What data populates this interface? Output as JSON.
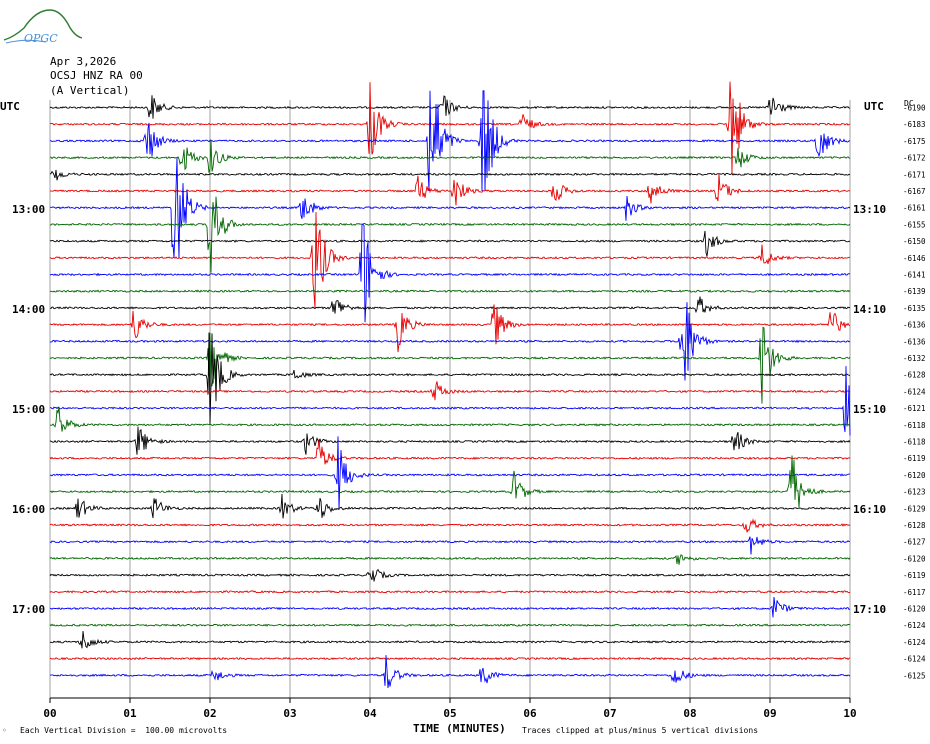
{
  "logo": {
    "text": "OPGC"
  },
  "header": {
    "date": "Apr 3,2026",
    "station": "OCSJ HNZ RA 00",
    "component": "(A Vertical)"
  },
  "left_axis": {
    "unit": "UTC",
    "hour_labels": [
      "13:00",
      "14:00",
      "15:00",
      "16:00",
      "17:00"
    ]
  },
  "right_axis": {
    "unit": "UTC",
    "hour_labels": [
      "13:10",
      "14:10",
      "15:10",
      "16:10",
      "17:10"
    ],
    "dc_label": "DC"
  },
  "colors": {
    "cycle": [
      "#000000",
      "#e60000",
      "#0000ff",
      "#006600"
    ],
    "grid": "#666666"
  },
  "chart_data": {
    "type": "line",
    "title": "",
    "xlabel": "TIME (MINUTES)",
    "x_ticks": [
      "00",
      "01",
      "02",
      "03",
      "04",
      "05",
      "06",
      "07",
      "08",
      "09",
      "10"
    ],
    "xlim": [
      0,
      10
    ],
    "trace_offsets": [
      -6190,
      -6183,
      -6175,
      -6172,
      -6171,
      -6167,
      -6161,
      -6155,
      -6150,
      -6146,
      -6141,
      -6139,
      -6135,
      -6136,
      -6136,
      -6132,
      -6128,
      -6124,
      -6121,
      -6118,
      -6118,
      -6119,
      -6120,
      -6123,
      -6129,
      -6128,
      -6127,
      -6120,
      -6119,
      -6117,
      -6120,
      -6124,
      -6124,
      -6124,
      -6125
    ],
    "events": [
      {
        "trace": 0,
        "minute": 1.25,
        "amp": 1.3
      },
      {
        "trace": 0,
        "minute": 4.9,
        "amp": 1.2
      },
      {
        "trace": 0,
        "minute": 9.0,
        "amp": 1.5
      },
      {
        "trace": 1,
        "minute": 4.0,
        "amp": 3.5
      },
      {
        "trace": 1,
        "minute": 5.9,
        "amp": 1.0
      },
      {
        "trace": 1,
        "minute": 8.5,
        "amp": 6
      },
      {
        "trace": 2,
        "minute": 1.2,
        "amp": 2.5
      },
      {
        "trace": 2,
        "minute": 4.75,
        "amp": 8
      },
      {
        "trace": 2,
        "minute": 5.4,
        "amp": 8
      },
      {
        "trace": 2,
        "minute": 9.6,
        "amp": 2
      },
      {
        "trace": 3,
        "minute": 1.65,
        "amp": 1.5
      },
      {
        "trace": 3,
        "minute": 2.0,
        "amp": 1.5
      },
      {
        "trace": 3,
        "minute": 8.6,
        "amp": 1.0
      },
      {
        "trace": 4,
        "minute": 0.05,
        "amp": 0.6
      },
      {
        "trace": 5,
        "minute": 4.6,
        "amp": 1.2
      },
      {
        "trace": 5,
        "minute": 5.05,
        "amp": 1.5
      },
      {
        "trace": 5,
        "minute": 6.3,
        "amp": 1.2
      },
      {
        "trace": 5,
        "minute": 7.5,
        "amp": 1.2
      },
      {
        "trace": 5,
        "minute": 8.35,
        "amp": 1.5
      },
      {
        "trace": 6,
        "minute": 1.55,
        "amp": 8
      },
      {
        "trace": 6,
        "minute": 3.15,
        "amp": 1.5
      },
      {
        "trace": 6,
        "minute": 7.2,
        "amp": 1.0
      },
      {
        "trace": 7,
        "minute": 2.0,
        "amp": 5
      },
      {
        "trace": 8,
        "minute": 8.2,
        "amp": 1.2
      },
      {
        "trace": 9,
        "minute": 3.3,
        "amp": 6
      },
      {
        "trace": 9,
        "minute": 8.9,
        "amp": 1.0
      },
      {
        "trace": 10,
        "minute": 3.9,
        "amp": 6
      },
      {
        "trace": 12,
        "minute": 3.55,
        "amp": 1.2
      },
      {
        "trace": 12,
        "minute": 8.1,
        "amp": 1.0
      },
      {
        "trace": 13,
        "minute": 1.05,
        "amp": 1.5
      },
      {
        "trace": 13,
        "minute": 4.35,
        "amp": 2
      },
      {
        "trace": 13,
        "minute": 5.55,
        "amp": 2
      },
      {
        "trace": 13,
        "minute": 9.75,
        "amp": 1.5
      },
      {
        "trace": 14,
        "minute": 7.9,
        "amp": 6
      },
      {
        "trace": 15,
        "minute": 2.0,
        "amp": 3
      },
      {
        "trace": 15,
        "minute": 8.9,
        "amp": 4
      },
      {
        "trace": 16,
        "minute": 2.0,
        "amp": 5
      },
      {
        "trace": 16,
        "minute": 3.05,
        "amp": 0.5
      },
      {
        "trace": 17,
        "minute": 4.8,
        "amp": 1.0
      },
      {
        "trace": 18,
        "minute": 9.95,
        "amp": 4
      },
      {
        "trace": 19,
        "minute": 0.1,
        "amp": 1.5
      },
      {
        "trace": 20,
        "minute": 1.1,
        "amp": 1.5
      },
      {
        "trace": 20,
        "minute": 3.2,
        "amp": 1.0
      },
      {
        "trace": 20,
        "minute": 8.55,
        "amp": 1.2
      },
      {
        "trace": 21,
        "minute": 3.35,
        "amp": 1.5
      },
      {
        "trace": 22,
        "minute": 3.6,
        "amp": 3
      },
      {
        "trace": 23,
        "minute": 5.8,
        "amp": 1.5
      },
      {
        "trace": 23,
        "minute": 9.25,
        "amp": 4
      },
      {
        "trace": 24,
        "minute": 0.35,
        "amp": 1.0
      },
      {
        "trace": 24,
        "minute": 1.3,
        "amp": 1.0
      },
      {
        "trace": 24,
        "minute": 2.9,
        "amp": 1.0
      },
      {
        "trace": 24,
        "minute": 3.35,
        "amp": 1.2
      },
      {
        "trace": 25,
        "minute": 8.7,
        "amp": 0.8
      },
      {
        "trace": 26,
        "minute": 8.75,
        "amp": 1.0
      },
      {
        "trace": 27,
        "minute": 7.85,
        "amp": 0.5
      },
      {
        "trace": 28,
        "minute": 4.0,
        "amp": 1.0
      },
      {
        "trace": 30,
        "minute": 9.05,
        "amp": 1.0
      },
      {
        "trace": 32,
        "minute": 0.4,
        "amp": 1.0
      },
      {
        "trace": 34,
        "minute": 2.05,
        "amp": 0.6
      },
      {
        "trace": 34,
        "minute": 4.2,
        "amp": 1.5
      },
      {
        "trace": 34,
        "minute": 5.4,
        "amp": 1.0
      },
      {
        "trace": 34,
        "minute": 7.8,
        "amp": 1.0
      }
    ]
  },
  "footer": {
    "left": "Each Vertical Division =  100.00 microvolts",
    "right": "Traces clipped at plus/minus 5 vertical divisions"
  }
}
